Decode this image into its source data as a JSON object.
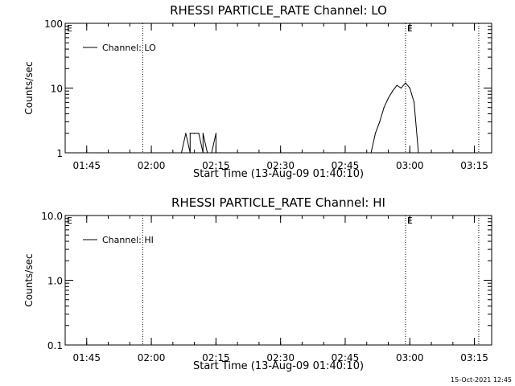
{
  "chart_data": [
    {
      "type": "line",
      "title": "RHESSI PARTICLE_RATE Channel: LO",
      "xlabel": "Start Time (13-Aug-09 01:40:10)",
      "ylabel": "Counts/sec",
      "yscale": "log",
      "ylim": [
        1,
        100
      ],
      "yticks": [
        1,
        10,
        100
      ],
      "ytick_labels": [
        "1",
        "10",
        "100"
      ],
      "xlim": [
        "01:40",
        "03:19"
      ],
      "xticks": [
        "01:45",
        "02:00",
        "02:15",
        "02:30",
        "02:45",
        "03:00",
        "03:15"
      ],
      "vertical_markers": [
        {
          "x": "01:58",
          "label": ""
        },
        {
          "x": "02:59",
          "label": "E"
        },
        {
          "x": "03:16",
          "label": ""
        }
      ],
      "corner_label": "E",
      "legend_placement": "top-left",
      "series": [
        {
          "name": "Channel: LO",
          "color": "#000000",
          "x": [
            "02:07",
            "02:08",
            "02:09",
            "02:09",
            "02:10",
            "02:11",
            "02:12",
            "02:12",
            "02:13",
            "02:13",
            "02:14",
            "02:15",
            "02:15",
            "02:16",
            "02:51",
            "02:52",
            "02:53",
            "02:54",
            "02:55",
            "02:56",
            "02:57",
            "02:58",
            "02:59",
            "03:00",
            "03:01",
            "03:02"
          ],
          "values": [
            1,
            2,
            1,
            2,
            2,
            2,
            1,
            2,
            1,
            1,
            1,
            2,
            1,
            1,
            1,
            2,
            3,
            5,
            7,
            9,
            11,
            10,
            12,
            10,
            6,
            1
          ]
        }
      ]
    },
    {
      "type": "line",
      "title": "RHESSI PARTICLE_RATE Channel: HI",
      "xlabel": "Start Time (13-Aug-09 01:40:10)",
      "ylabel": "Counts/sec",
      "yscale": "log",
      "ylim": [
        0.1,
        10
      ],
      "yticks": [
        0.1,
        1,
        10
      ],
      "ytick_labels": [
        "0.1",
        "1.0",
        "10.0"
      ],
      "xlim": [
        "01:40",
        "03:19"
      ],
      "xticks": [
        "01:45",
        "02:00",
        "02:15",
        "02:30",
        "02:45",
        "03:00",
        "03:15"
      ],
      "vertical_markers": [
        {
          "x": "01:58",
          "label": ""
        },
        {
          "x": "02:59",
          "label": "E"
        },
        {
          "x": "03:16",
          "label": ""
        }
      ],
      "corner_label": "E",
      "legend_placement": "top-left",
      "series": [
        {
          "name": "Channel: HI",
          "color": "#000000",
          "x": [],
          "values": []
        }
      ]
    }
  ],
  "footer": {
    "timestamp": "15-Oct-2021 12:45"
  }
}
